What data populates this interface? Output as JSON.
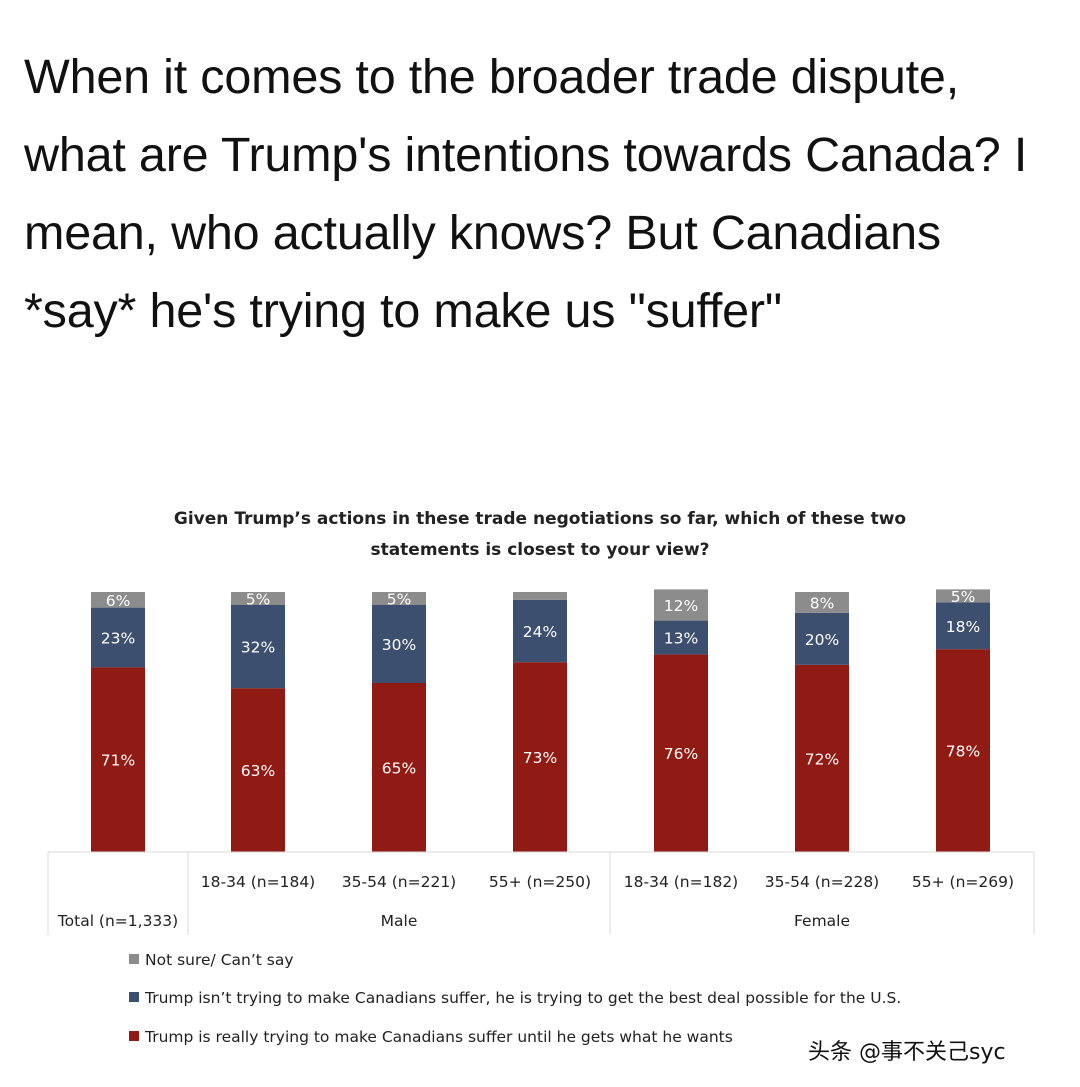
{
  "headline": "When it comes to the broader trade dispute, what are Trump's intentions towards Canada? I mean, who actually knows? But Canadians *say* he's trying to make us \"suffer\"",
  "watermark": "头条 @事不关己syc",
  "chart_data": {
    "type": "bar",
    "stacked": true,
    "title_lines": [
      "Given Trump’s actions in these trade negotiations so far, which of these two",
      "statements is closest to your view?"
    ],
    "categories": [
      "Total (n=1,333)",
      "18-34 (n=184)",
      "35-54 (n=221)",
      "55+ (n=250)",
      "18-34 (n=182)",
      "35-54 (n=228)",
      "55+ (n=269)"
    ],
    "groups": [
      {
        "label": "Male",
        "categories": [
          1,
          2,
          3
        ]
      },
      {
        "label": "Female",
        "categories": [
          4,
          5,
          6
        ]
      }
    ],
    "series": [
      {
        "name": "Trump is really trying to make Canadians suffer until he gets what he wants",
        "color": "#8f1b14",
        "values": [
          71,
          63,
          65,
          73,
          76,
          72,
          78
        ],
        "labels": [
          "71%",
          "63%",
          "65%",
          "73%",
          "76%",
          "72%",
          "78%"
        ]
      },
      {
        "name": "Trump isn’t trying to make Canadians suffer, he is trying to get the best deal possible for the U.S.",
        "color": "#3d4f6e",
        "values": [
          23,
          32,
          30,
          24,
          13,
          20,
          18
        ],
        "labels": [
          "23%",
          "32%",
          "30%",
          "24%",
          "13%",
          "20%",
          "18%"
        ]
      },
      {
        "name": "Not sure/ Can’t say",
        "color": "#8c8c8c",
        "values": [
          6,
          5,
          5,
          3,
          12,
          8,
          5
        ],
        "labels": [
          "6%",
          "5%",
          "5%",
          "",
          "12%",
          "8%",
          "5%"
        ]
      }
    ],
    "legend_order": [
      2,
      1,
      0
    ],
    "ylim": [
      0,
      100
    ],
    "grid": false,
    "legend_position": "bottom-left"
  }
}
